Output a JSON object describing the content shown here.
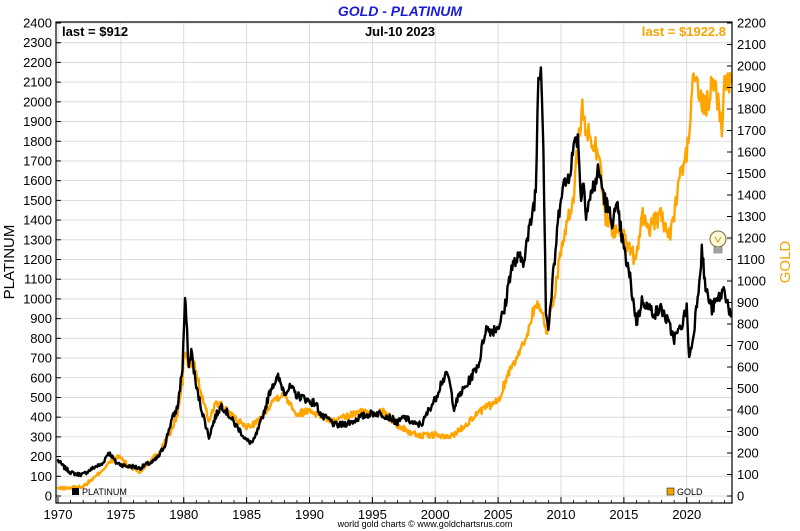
{
  "chart_data": {
    "type": "line",
    "title": "GOLD - PLATINUM",
    "date_label": "Jul-10  2023",
    "last_left": "last = $912",
    "last_right": "last = $1922.8",
    "ylabel_left": "PLATINUM",
    "ylabel_right": "GOLD",
    "credit": "world gold charts © www.goldchartsrus.com",
    "xlim": [
      1970,
      2023.6
    ],
    "ylim_left": [
      0,
      2400
    ],
    "ylim_right": [
      0,
      2200
    ],
    "x_ticks": [
      1970,
      1975,
      1980,
      1985,
      1990,
      1995,
      2000,
      2005,
      2010,
      2015,
      2020
    ],
    "y_ticks_left": [
      0,
      100,
      200,
      300,
      400,
      500,
      600,
      700,
      800,
      900,
      1000,
      1100,
      1200,
      1300,
      1400,
      1500,
      1600,
      1700,
      1800,
      1900,
      2000,
      2100,
      2200,
      2300,
      2400
    ],
    "y_ticks_right": [
      0,
      100,
      200,
      300,
      400,
      500,
      600,
      700,
      800,
      900,
      1000,
      1100,
      1200,
      1300,
      1400,
      1500,
      1600,
      1700,
      1800,
      1900,
      2000,
      2100,
      2200
    ],
    "grid": true,
    "legend_position": "bottom",
    "series": [
      {
        "name": "PLATINUM",
        "axis": "left",
        "color": "#000000",
        "x": [
          1970.0,
          1970.5,
          1971.0,
          1971.5,
          1972.0,
          1972.5,
          1973.0,
          1973.5,
          1974.0,
          1974.2,
          1974.6,
          1975.0,
          1975.5,
          1976.0,
          1976.5,
          1977.0,
          1977.5,
          1978.0,
          1978.5,
          1979.0,
          1979.5,
          1979.9,
          1980.1,
          1980.2,
          1980.4,
          1980.6,
          1981.0,
          1981.5,
          1982.0,
          1982.5,
          1983.0,
          1983.5,
          1984.0,
          1984.5,
          1985.0,
          1985.5,
          1986.0,
          1986.5,
          1987.0,
          1987.5,
          1988.0,
          1988.5,
          1989.0,
          1989.5,
          1990.0,
          1990.5,
          1991.0,
          1991.5,
          1992.0,
          1992.5,
          1993.0,
          1993.5,
          1994.0,
          1994.5,
          1995.0,
          1995.5,
          1996.0,
          1996.5,
          1997.0,
          1997.5,
          1998.0,
          1998.5,
          1999.0,
          1999.5,
          2000.0,
          2000.5,
          2001.0,
          2001.5,
          2002.0,
          2002.5,
          2003.0,
          2003.5,
          2004.0,
          2004.5,
          2005.0,
          2005.5,
          2006.0,
          2006.5,
          2007.0,
          2007.5,
          2008.0,
          2008.2,
          2008.4,
          2008.6,
          2008.8,
          2009.0,
          2009.5,
          2010.0,
          2010.5,
          2011.0,
          2011.2,
          2011.4,
          2011.6,
          2011.8,
          2012.0,
          2012.5,
          2013.0,
          2013.5,
          2014.0,
          2014.5,
          2015.0,
          2015.5,
          2016.0,
          2016.5,
          2017.0,
          2017.5,
          2018.0,
          2018.5,
          2019.0,
          2019.5,
          2020.0,
          2020.2,
          2020.5,
          2021.0,
          2021.2,
          2021.5,
          2022.0,
          2022.5,
          2023.0,
          2023.5
        ],
        "values": [
          180,
          145,
          120,
          110,
          110,
          130,
          150,
          160,
          220,
          210,
          170,
          160,
          150,
          150,
          140,
          160,
          170,
          200,
          260,
          380,
          450,
          650,
          1000,
          900,
          650,
          740,
          550,
          420,
          300,
          400,
          460,
          420,
          370,
          330,
          280,
          270,
          350,
          450,
          560,
          600,
          530,
          550,
          510,
          500,
          480,
          470,
          400,
          390,
          360,
          360,
          370,
          380,
          400,
          410,
          420,
          420,
          410,
          395,
          370,
          400,
          380,
          360,
          370,
          440,
          490,
          580,
          620,
          450,
          520,
          560,
          620,
          680,
          850,
          840,
          860,
          940,
          1150,
          1200,
          1200,
          1350,
          1550,
          2150,
          2200,
          1800,
          950,
          850,
          1200,
          1550,
          1600,
          1750,
          1850,
          1780,
          1500,
          1600,
          1450,
          1550,
          1650,
          1500,
          1400,
          1450,
          1250,
          1100,
          880,
          1000,
          950,
          930,
          950,
          880,
          800,
          850,
          950,
          700,
          800,
          1100,
          1250,
          1050,
          950,
          1000,
          1050,
          912
        ]
      },
      {
        "name": "GOLD",
        "axis": "right",
        "color": "#ffa500",
        "x": [
          1970.0,
          1971.0,
          1972.0,
          1973.0,
          1974.0,
          1974.9,
          1975.5,
          1976.5,
          1977.0,
          1978.0,
          1979.0,
          1979.5,
          1979.9,
          1980.05,
          1980.4,
          1980.8,
          1981.5,
          1982.0,
          1982.5,
          1983.0,
          1984.0,
          1985.0,
          1986.0,
          1987.0,
          1987.9,
          1988.5,
          1989.0,
          1990.0,
          1991.0,
          1992.0,
          1993.0,
          1994.0,
          1995.0,
          1996.0,
          1997.0,
          1998.0,
          1999.0,
          2000.0,
          2001.0,
          2002.0,
          2003.0,
          2004.0,
          2005.0,
          2006.0,
          2007.0,
          2008.0,
          2008.5,
          2008.9,
          2009.5,
          2010.0,
          2010.5,
          2011.0,
          2011.3,
          2011.7,
          2012.0,
          2012.5,
          2013.0,
          2013.5,
          2014.0,
          2015.0,
          2015.9,
          2016.5,
          2017.0,
          2018.0,
          2018.7,
          2019.0,
          2019.5,
          2020.0,
          2020.3,
          2020.6,
          2021.0,
          2021.5,
          2022.0,
          2022.2,
          2022.8,
          2023.0,
          2023.5
        ],
        "values": [
          35,
          38,
          45,
          90,
          150,
          185,
          145,
          110,
          145,
          200,
          300,
          380,
          530,
          680,
          600,
          620,
          450,
          350,
          430,
          420,
          360,
          320,
          350,
          440,
          480,
          430,
          380,
          400,
          370,
          345,
          370,
          390,
          385,
          390,
          330,
          295,
          280,
          285,
          270,
          310,
          365,
          410,
          440,
          600,
          700,
          900,
          850,
          760,
          950,
          1150,
          1250,
          1400,
          1600,
          1800,
          1700,
          1650,
          1600,
          1300,
          1250,
          1200,
          1100,
          1300,
          1250,
          1300,
          1200,
          1300,
          1500,
          1600,
          1750,
          2000,
          1850,
          1800,
          1900,
          1950,
          1700,
          1950,
          1922.8
        ]
      }
    ]
  }
}
